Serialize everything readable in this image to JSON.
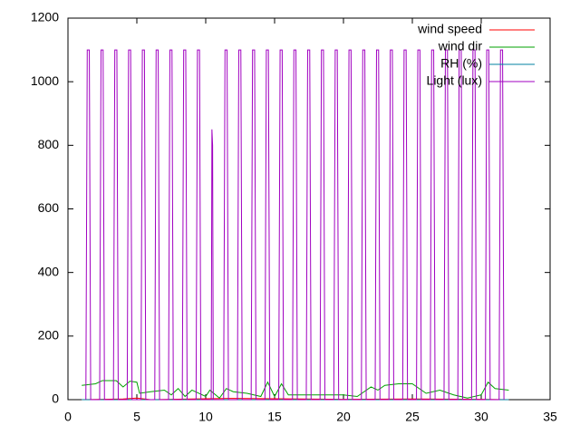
{
  "chart_data": {
    "type": "line",
    "xlim": [
      0,
      35
    ],
    "xticks": [
      0,
      5,
      10,
      15,
      20,
      25,
      30,
      35
    ],
    "ylim": [
      0,
      1200
    ],
    "yticks": [
      0,
      200,
      400,
      600,
      800,
      1000,
      1200
    ],
    "grid": false,
    "legend": "top-right",
    "series": [
      {
        "name": "wind speed",
        "color": "#ff0000",
        "x": [
          1,
          4,
          5,
          6,
          10,
          12,
          15,
          20,
          25,
          30,
          32
        ],
        "values": [
          0,
          2,
          5,
          0,
          3,
          4,
          3,
          1,
          2,
          1,
          0
        ]
      },
      {
        "name": "wind dir",
        "color": "#00a000",
        "x": [
          1,
          2,
          2.5,
          3.5,
          4,
          4.5,
          5,
          5.2,
          6,
          7,
          7.5,
          8,
          8.5,
          9,
          10,
          10.3,
          11,
          11.5,
          12,
          13,
          14,
          14.5,
          15,
          15.5,
          16,
          18,
          20,
          21,
          22,
          22.5,
          23,
          24,
          25,
          26,
          27,
          28,
          29,
          30,
          30.5,
          31,
          32
        ],
        "values": [
          45,
          50,
          60,
          60,
          40,
          58,
          55,
          20,
          25,
          30,
          15,
          35,
          10,
          30,
          10,
          30,
          5,
          35,
          25,
          20,
          10,
          55,
          10,
          50,
          15,
          15,
          15,
          10,
          40,
          30,
          45,
          50,
          50,
          20,
          30,
          15,
          5,
          15,
          55,
          35,
          30
        ]
      },
      {
        "name": "RH (%)",
        "color": "#0080a0",
        "x": [
          1,
          32
        ],
        "values": [
          0,
          0
        ]
      },
      {
        "name": "Light (lux)",
        "color": "#a000c0",
        "x": [
          1.3,
          1.4,
          1.55,
          1.65,
          2.3,
          2.4,
          2.55,
          2.65,
          3.3,
          3.4,
          3.55,
          3.65,
          4.3,
          4.4,
          4.55,
          4.65,
          5.3,
          5.4,
          5.55,
          5.65,
          6.3,
          6.4,
          6.55,
          6.65,
          7.3,
          7.4,
          7.55,
          7.65,
          8.3,
          8.4,
          8.55,
          8.65,
          9.3,
          9.4,
          9.55,
          9.65,
          10.4,
          10.45,
          10.5,
          10.55,
          11.3,
          11.4,
          11.55,
          11.65,
          12.3,
          12.4,
          12.55,
          12.65,
          13.3,
          13.4,
          13.55,
          13.65,
          14.3,
          14.4,
          14.55,
          14.65,
          15.3,
          15.4,
          15.55,
          15.65,
          16.3,
          16.4,
          16.55,
          16.65,
          17.3,
          17.4,
          17.55,
          17.65,
          18.3,
          18.4,
          18.55,
          18.65,
          19.3,
          19.4,
          19.55,
          19.65,
          20.3,
          20.4,
          20.55,
          20.65,
          21.3,
          21.4,
          21.55,
          21.65,
          22.3,
          22.4,
          22.55,
          22.65,
          23.3,
          23.4,
          23.55,
          23.65,
          24.3,
          24.4,
          24.55,
          24.65,
          25.3,
          25.4,
          25.55,
          25.65,
          26.3,
          26.4,
          26.55,
          26.65,
          27.3,
          27.4,
          27.55,
          27.65,
          28.3,
          28.4,
          28.55,
          28.65,
          29.3,
          29.4,
          29.55,
          29.65,
          30.3,
          30.4,
          30.55,
          30.65,
          31.3,
          31.4,
          31.55,
          31.65
        ],
        "values": [
          0,
          1100,
          1100,
          0,
          0,
          1100,
          1100,
          0,
          0,
          1100,
          1100,
          0,
          0,
          1100,
          1100,
          0,
          0,
          1100,
          1100,
          0,
          0,
          1100,
          1100,
          0,
          0,
          1100,
          1100,
          0,
          0,
          1100,
          1100,
          0,
          0,
          1100,
          1100,
          0,
          0,
          850,
          800,
          0,
          0,
          1100,
          1100,
          0,
          0,
          1100,
          1100,
          0,
          0,
          1100,
          1100,
          0,
          0,
          1100,
          1100,
          0,
          0,
          1100,
          1100,
          0,
          0,
          1100,
          1100,
          0,
          0,
          1100,
          1100,
          0,
          0,
          1100,
          1100,
          0,
          0,
          1100,
          1100,
          0,
          0,
          1100,
          1100,
          0,
          0,
          1100,
          1100,
          0,
          0,
          1100,
          1100,
          0,
          0,
          1100,
          1100,
          0,
          0,
          1100,
          1100,
          0,
          0,
          1100,
          1100,
          0,
          0,
          1100,
          1100,
          0,
          0,
          1100,
          1100,
          0,
          0,
          1100,
          1100,
          0,
          0,
          1100,
          1100,
          0,
          0,
          1100,
          1100,
          0,
          0,
          1100,
          1100,
          0
        ]
      }
    ]
  }
}
